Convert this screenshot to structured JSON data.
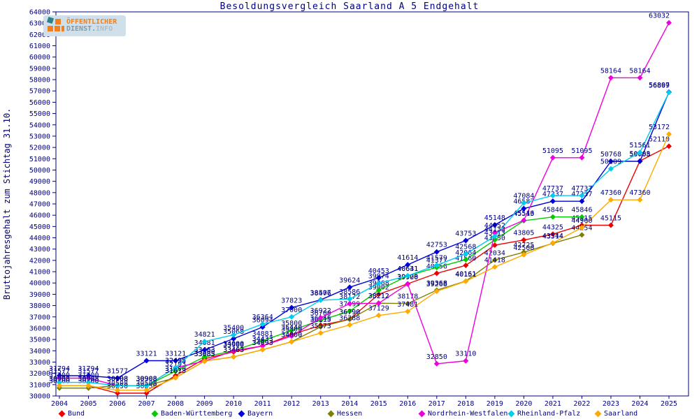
{
  "title": "Besoldungsvergleich Saarland A 5 Endgehalt",
  "logo": {
    "line1": "ÖFFENTLICHER",
    "line2_dienst": "DIENST.",
    "line2_info": "INFO"
  },
  "y_axis": {
    "label": "Bruttojahresgehalt zum Stichtag 31.10.",
    "min": 30000,
    "max": 64000,
    "step": 1000
  },
  "colors": {
    "axis_text": "#000080",
    "plot_border": "#000080",
    "logo_orange": "#f08020",
    "logo_teal": "#2e7f86",
    "logo_background": "#cfe0ea"
  },
  "chart_data": {
    "type": "line",
    "title": "Besoldungsvergleich Saarland A 5 Endgehalt",
    "ylabel": "Bruttojahresgehalt zum Stichtag 31.10.",
    "ylim": [
      30000,
      64000
    ],
    "grid": false,
    "legend_position": "bottom",
    "point_labels": true,
    "x": [
      2004,
      2005,
      2006,
      2007,
      2008,
      2009,
      2010,
      2011,
      2012,
      2013,
      2014,
      2015,
      2016,
      2017,
      2018,
      2019,
      2020,
      2021,
      2022,
      2023,
      2024,
      2025
    ],
    "series": [
      {
        "name": "Bund",
        "color": "#ee0000",
        "values": [
          30908,
          30908,
          30250,
          30250,
          31800,
          33300,
          33900,
          34433,
          35440,
          36245,
          36790,
          39002,
          39928,
          40856,
          41560,
          43350,
          43805,
          44325,
          45115,
          45115,
          50805,
          52110
        ]
      },
      {
        "name": "Baden-Württemberg",
        "color": "#00cc00",
        "values": [
          30700,
          30700,
          30908,
          30908,
          32193,
          33463,
          34000,
          34881,
          35800,
          36700,
          37499,
          39368,
          40631,
          41377,
          42064,
          43813,
          45513,
          45846,
          45846,
          null,
          null,
          null
        ]
      },
      {
        "name": "Bayern",
        "color": "#0000dd",
        "values": [
          31794,
          31794,
          31577,
          33121,
          33121,
          34081,
          35068,
          36094,
          37823,
          38507,
          39624,
          40453,
          41614,
          42753,
          43753,
          45148,
          46587,
          47237,
          47237,
          50768,
          50768,
          56897
        ]
      },
      {
        "name": "Hessen",
        "color": "#808000",
        "values": [
          30700,
          30700,
          30908,
          30908,
          31613,
          33085,
          33463,
          34093,
          34800,
          36115,
          36790,
          38212,
          38178,
          39368,
          40161,
          42034,
          42725,
          43514,
          44254,
          null,
          null,
          null
        ]
      },
      {
        "name": "Nordrhein-Westfalen",
        "color": "#ee00dd",
        "values": [
          31577,
          31577,
          30908,
          30908,
          32495,
          33085,
          34000,
          34433,
          35300,
          36922,
          38172,
          38212,
          39900,
          32850,
          33110,
          44452,
          45546,
          51095,
          51095,
          58164,
          58164,
          63032
        ]
      },
      {
        "name": "Rheinland-Pfalz",
        "color": "#00ccee",
        "values": [
          31200,
          31200,
          30908,
          30908,
          32495,
          34821,
          35400,
          36364,
          37000,
          38476,
          38586,
          39974,
          40641,
          41579,
          42568,
          44133,
          47084,
          47737,
          47737,
          50109,
          51561,
          56869
        ]
      },
      {
        "name": "Saarland",
        "color": "#ffaa00",
        "values": [
          30908,
          30908,
          30508,
          30508,
          31613,
          33085,
          33463,
          34093,
          34800,
          35573,
          36288,
          37129,
          37481,
          39268,
          40151,
          41418,
          42500,
          43544,
          44900,
          47360,
          47360,
          53172
        ]
      }
    ]
  }
}
